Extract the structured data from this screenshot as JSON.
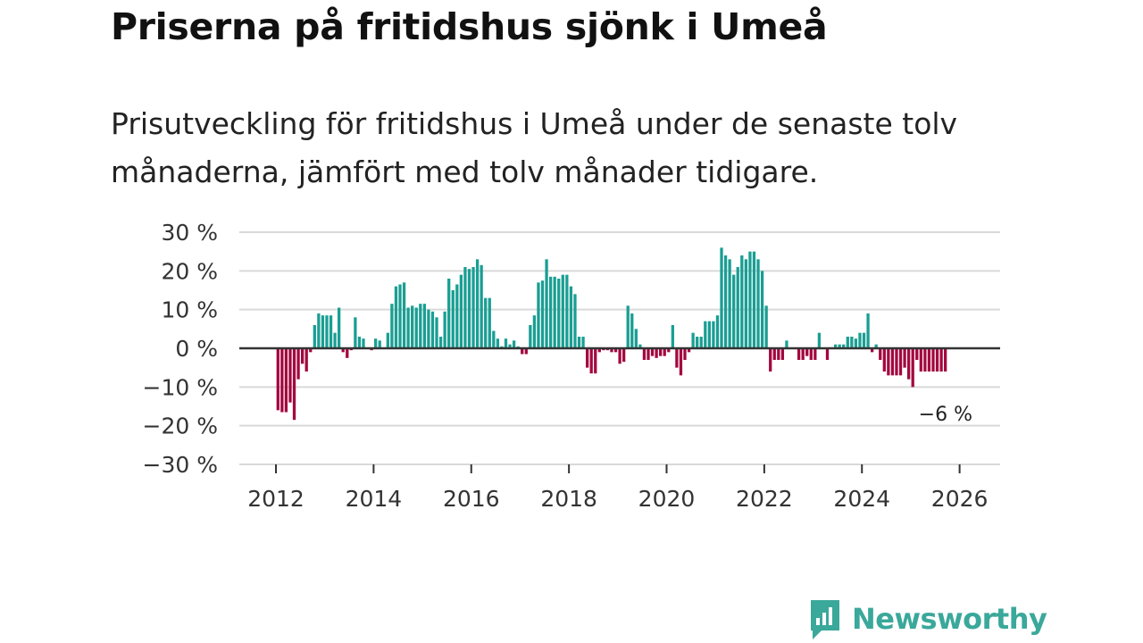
{
  "title": "Priserna på fritidshus sjönk i Umeå",
  "subtitle": "Prisutveckling för fritidshus i Umeå under de senaste tolv månaderna, jämfört med tolv månader tidigare.",
  "brand": {
    "name": "Newsworthy",
    "color": "#3aa89a",
    "icon": "newsworthy-chart-bubble-icon"
  },
  "chart_data": {
    "type": "bar",
    "title": "Priserna på fritidshus sjönk i Umeå",
    "xlabel": "",
    "ylabel": "",
    "ylim": [
      -30,
      30
    ],
    "xlim": [
      2011.25,
      2026.83
    ],
    "grid": true,
    "y_ticks": [
      {
        "value": 30,
        "label": "30 %"
      },
      {
        "value": 20,
        "label": "20 %"
      },
      {
        "value": 10,
        "label": "10 %"
      },
      {
        "value": 0,
        "label": "0 %"
      },
      {
        "value": -10,
        "label": "−10 %"
      },
      {
        "value": -20,
        "label": "−20 %"
      },
      {
        "value": -30,
        "label": "−30 %"
      }
    ],
    "x_ticks": [
      {
        "value": 2012,
        "label": "2012"
      },
      {
        "value": 2014,
        "label": "2014"
      },
      {
        "value": 2016,
        "label": "2016"
      },
      {
        "value": 2018,
        "label": "2018"
      },
      {
        "value": 2020,
        "label": "2020"
      },
      {
        "value": 2022,
        "label": "2022"
      },
      {
        "value": 2024,
        "label": "2024"
      },
      {
        "value": 2026,
        "label": "2026"
      }
    ],
    "colors": {
      "positive": "#1a9e93",
      "negative": "#a3073f",
      "grid": "#d9d9d9",
      "zero": "#333333"
    },
    "annotation": {
      "text": "−6 %",
      "value": -6
    },
    "start": "2012-01",
    "values": [
      -16,
      -16.5,
      -16.5,
      -14,
      -18.5,
      -8,
      -4,
      -6,
      -1,
      6,
      9,
      8.5,
      8.5,
      8.5,
      4,
      10.5,
      -1,
      -2.5,
      -0.5,
      8,
      3,
      2.5,
      0,
      -0.5,
      2.5,
      2,
      0,
      4,
      11.5,
      16,
      16.5,
      17,
      10.5,
      11,
      10.5,
      11.5,
      11.5,
      10,
      9.5,
      8,
      3,
      9.5,
      18,
      15,
      16.5,
      19,
      21,
      20.5,
      21,
      23,
      21.5,
      13,
      13,
      4.5,
      2.5,
      0.5,
      2.5,
      1,
      2,
      0.5,
      -1.5,
      -1.5,
      6,
      8.5,
      17,
      17.5,
      23,
      18.5,
      18.5,
      18,
      19,
      19,
      16,
      14,
      3,
      3,
      -5,
      -6.5,
      -6.5,
      -1,
      -0.5,
      -0.5,
      -1,
      -1,
      -4,
      -3.5,
      11,
      9,
      5,
      1,
      -3,
      -3,
      -2,
      -2.5,
      -2,
      -2,
      -1,
      6,
      -5,
      -7,
      -3,
      -1,
      4,
      3,
      3,
      7,
      7,
      7,
      8.5,
      26,
      24,
      23,
      19,
      21,
      24,
      23,
      25,
      25,
      23,
      20,
      11,
      -6,
      -3,
      -3,
      -3,
      2,
      0,
      0,
      -3,
      -3,
      -2,
      -3,
      -3,
      4,
      0,
      -3,
      0,
      1,
      1,
      1,
      3,
      3,
      2.5,
      4,
      4,
      9,
      -1,
      1,
      -3,
      -6,
      -7,
      -7,
      -7,
      -7,
      -5,
      -8,
      -10,
      -3,
      -6,
      -6,
      -6,
      -6,
      -6,
      -6,
      -6
    ]
  }
}
